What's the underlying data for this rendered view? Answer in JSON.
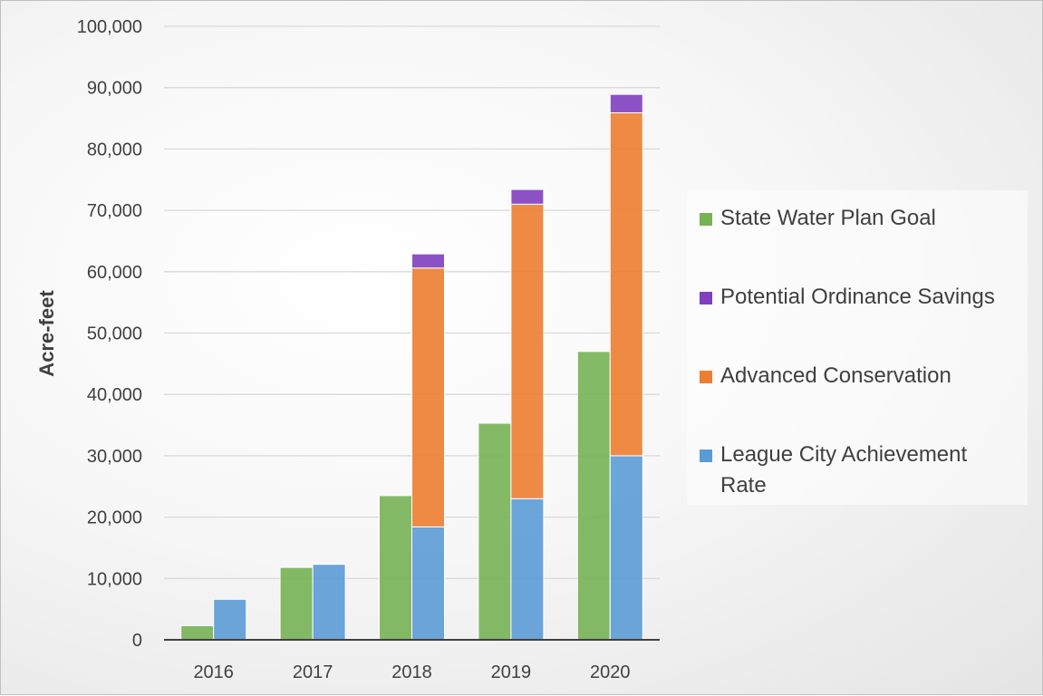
{
  "chart_data": {
    "type": "bar",
    "ylabel": "Acre-feet",
    "xlabel": "",
    "ylim": [
      0,
      100000
    ],
    "yticks": [
      "0",
      "10,000",
      "20,000",
      "30,000",
      "40,000",
      "50,000",
      "60,000",
      "70,000",
      "80,000",
      "90,000",
      "100,000"
    ],
    "categories": [
      "2016",
      "2017",
      "2018",
      "2019",
      "2020"
    ],
    "grid": true,
    "legend_position": "right",
    "series": [
      {
        "name": "State Water Plan Goal",
        "stack": "goal",
        "color": "#77b255",
        "values": [
          2300,
          11800,
          23500,
          35300,
          47000
        ]
      },
      {
        "name": "League City Achievement Rate",
        "stack": "achieved",
        "color": "#5b9bd5",
        "values": [
          6600,
          12300,
          18400,
          23000,
          30000
        ]
      },
      {
        "name": "Advanced Conservation",
        "stack": "achieved",
        "color": "#ed7d31",
        "values": [
          0,
          0,
          42200,
          48000,
          55900
        ]
      },
      {
        "name": "Potential Ordinance Savings",
        "stack": "achieved",
        "color": "#7f3fbf",
        "values": [
          0,
          0,
          2300,
          2400,
          3000
        ]
      }
    ],
    "legend_order": [
      "State Water Plan Goal",
      "Potential Ordinance Savings",
      "Advanced Conservation",
      "League City Achievement Rate"
    ]
  }
}
